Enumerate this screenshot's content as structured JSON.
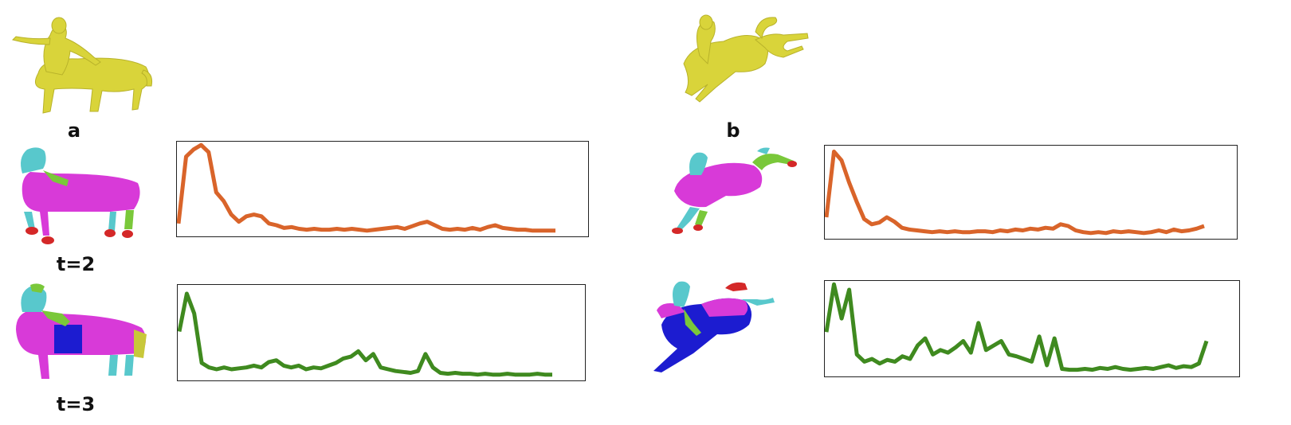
{
  "labels": {
    "a": "a",
    "b": "b",
    "t2": "t=2",
    "t3": "t=3"
  },
  "colors": {
    "mesh_yellow": "#d9d43a",
    "seg_magenta": "#d83ad8",
    "seg_cyan": "#58c8cc",
    "seg_green": "#7ac83a",
    "seg_red": "#d42828",
    "seg_blue": "#1c1cd0",
    "line_orange": "#d9642a",
    "line_green": "#3f8a1f"
  },
  "chart_data": [
    {
      "type": "line",
      "name": "a-t2",
      "color": "orange",
      "ylim": [
        0,
        1
      ],
      "x": [
        0,
        2,
        4,
        6,
        8,
        10,
        12,
        14,
        16,
        18,
        20,
        22,
        24,
        26,
        28,
        30,
        32,
        34,
        36,
        38,
        40,
        42,
        44,
        46,
        48,
        50,
        52,
        54,
        56,
        58,
        60,
        62,
        64,
        66,
        68,
        70,
        72,
        74,
        76,
        78,
        80,
        82,
        84,
        86,
        88,
        90,
        92,
        94,
        96,
        98,
        100
      ],
      "y": [
        0.1,
        0.85,
        0.93,
        0.98,
        0.9,
        0.45,
        0.35,
        0.2,
        0.12,
        0.18,
        0.2,
        0.18,
        0.1,
        0.08,
        0.05,
        0.06,
        0.04,
        0.03,
        0.04,
        0.03,
        0.03,
        0.04,
        0.03,
        0.04,
        0.03,
        0.02,
        0.03,
        0.04,
        0.05,
        0.06,
        0.04,
        0.07,
        0.1,
        0.12,
        0.08,
        0.04,
        0.03,
        0.04,
        0.03,
        0.05,
        0.03,
        0.06,
        0.08,
        0.05,
        0.04,
        0.03,
        0.03,
        0.02,
        0.02,
        0.02,
        0.02
      ]
    },
    {
      "type": "line",
      "name": "b-t2",
      "color": "orange",
      "ylim": [
        0,
        1
      ],
      "x": [
        0,
        2,
        4,
        6,
        8,
        10,
        12,
        14,
        16,
        18,
        20,
        22,
        24,
        26,
        28,
        30,
        32,
        34,
        36,
        38,
        40,
        42,
        44,
        46,
        48,
        50,
        52,
        54,
        56,
        58,
        60,
        62,
        64,
        66,
        68,
        70,
        72,
        74,
        76,
        78,
        80,
        82,
        84,
        86,
        88,
        90,
        92,
        94,
        96,
        98,
        100
      ],
      "y": [
        0.2,
        0.95,
        0.85,
        0.6,
        0.38,
        0.18,
        0.12,
        0.14,
        0.2,
        0.15,
        0.08,
        0.06,
        0.05,
        0.04,
        0.03,
        0.04,
        0.03,
        0.04,
        0.03,
        0.03,
        0.04,
        0.04,
        0.03,
        0.05,
        0.04,
        0.06,
        0.05,
        0.07,
        0.06,
        0.08,
        0.07,
        0.12,
        0.1,
        0.05,
        0.03,
        0.02,
        0.03,
        0.02,
        0.04,
        0.03,
        0.04,
        0.03,
        0.02,
        0.03,
        0.05,
        0.03,
        0.06,
        0.04,
        0.05,
        0.07,
        0.1
      ]
    },
    {
      "type": "line",
      "name": "a-t3",
      "color": "green",
      "ylim": [
        0,
        1
      ],
      "x": [
        0,
        2,
        4,
        6,
        8,
        10,
        12,
        14,
        16,
        18,
        20,
        22,
        24,
        26,
        28,
        30,
        32,
        34,
        36,
        38,
        40,
        42,
        44,
        46,
        48,
        50,
        52,
        54,
        56,
        58,
        60,
        62,
        64,
        66,
        68,
        70,
        72,
        74,
        76,
        78,
        80,
        82,
        84,
        86,
        88,
        90,
        92,
        94,
        96,
        98,
        100
      ],
      "y": [
        0.5,
        0.92,
        0.7,
        0.15,
        0.1,
        0.08,
        0.1,
        0.08,
        0.09,
        0.1,
        0.12,
        0.1,
        0.16,
        0.18,
        0.12,
        0.1,
        0.12,
        0.08,
        0.1,
        0.09,
        0.12,
        0.15,
        0.2,
        0.22,
        0.28,
        0.18,
        0.25,
        0.1,
        0.08,
        0.06,
        0.05,
        0.04,
        0.06,
        0.25,
        0.1,
        0.04,
        0.03,
        0.04,
        0.03,
        0.03,
        0.02,
        0.03,
        0.02,
        0.02,
        0.03,
        0.02,
        0.02,
        0.02,
        0.03,
        0.02,
        0.02
      ]
    },
    {
      "type": "line",
      "name": "b-t3",
      "color": "green",
      "ylim": [
        0,
        1
      ],
      "x": [
        0,
        2,
        4,
        6,
        8,
        10,
        12,
        14,
        16,
        18,
        20,
        22,
        24,
        26,
        28,
        30,
        32,
        34,
        36,
        38,
        40,
        42,
        44,
        46,
        48,
        50,
        52,
        54,
        56,
        58,
        60,
        62,
        64,
        66,
        68,
        70,
        72,
        74,
        76,
        78,
        80,
        82,
        84,
        86,
        88,
        90,
        92,
        94,
        96,
        98,
        100
      ],
      "y": [
        0.45,
        0.98,
        0.6,
        0.92,
        0.2,
        0.12,
        0.15,
        0.1,
        0.14,
        0.12,
        0.18,
        0.15,
        0.3,
        0.38,
        0.2,
        0.25,
        0.22,
        0.28,
        0.35,
        0.22,
        0.55,
        0.25,
        0.3,
        0.35,
        0.2,
        0.18,
        0.15,
        0.12,
        0.4,
        0.08,
        0.38,
        0.04,
        0.03,
        0.03,
        0.04,
        0.03,
        0.05,
        0.04,
        0.06,
        0.04,
        0.03,
        0.04,
        0.05,
        0.04,
        0.06,
        0.08,
        0.05,
        0.07,
        0.06,
        0.1,
        0.35
      ]
    }
  ]
}
